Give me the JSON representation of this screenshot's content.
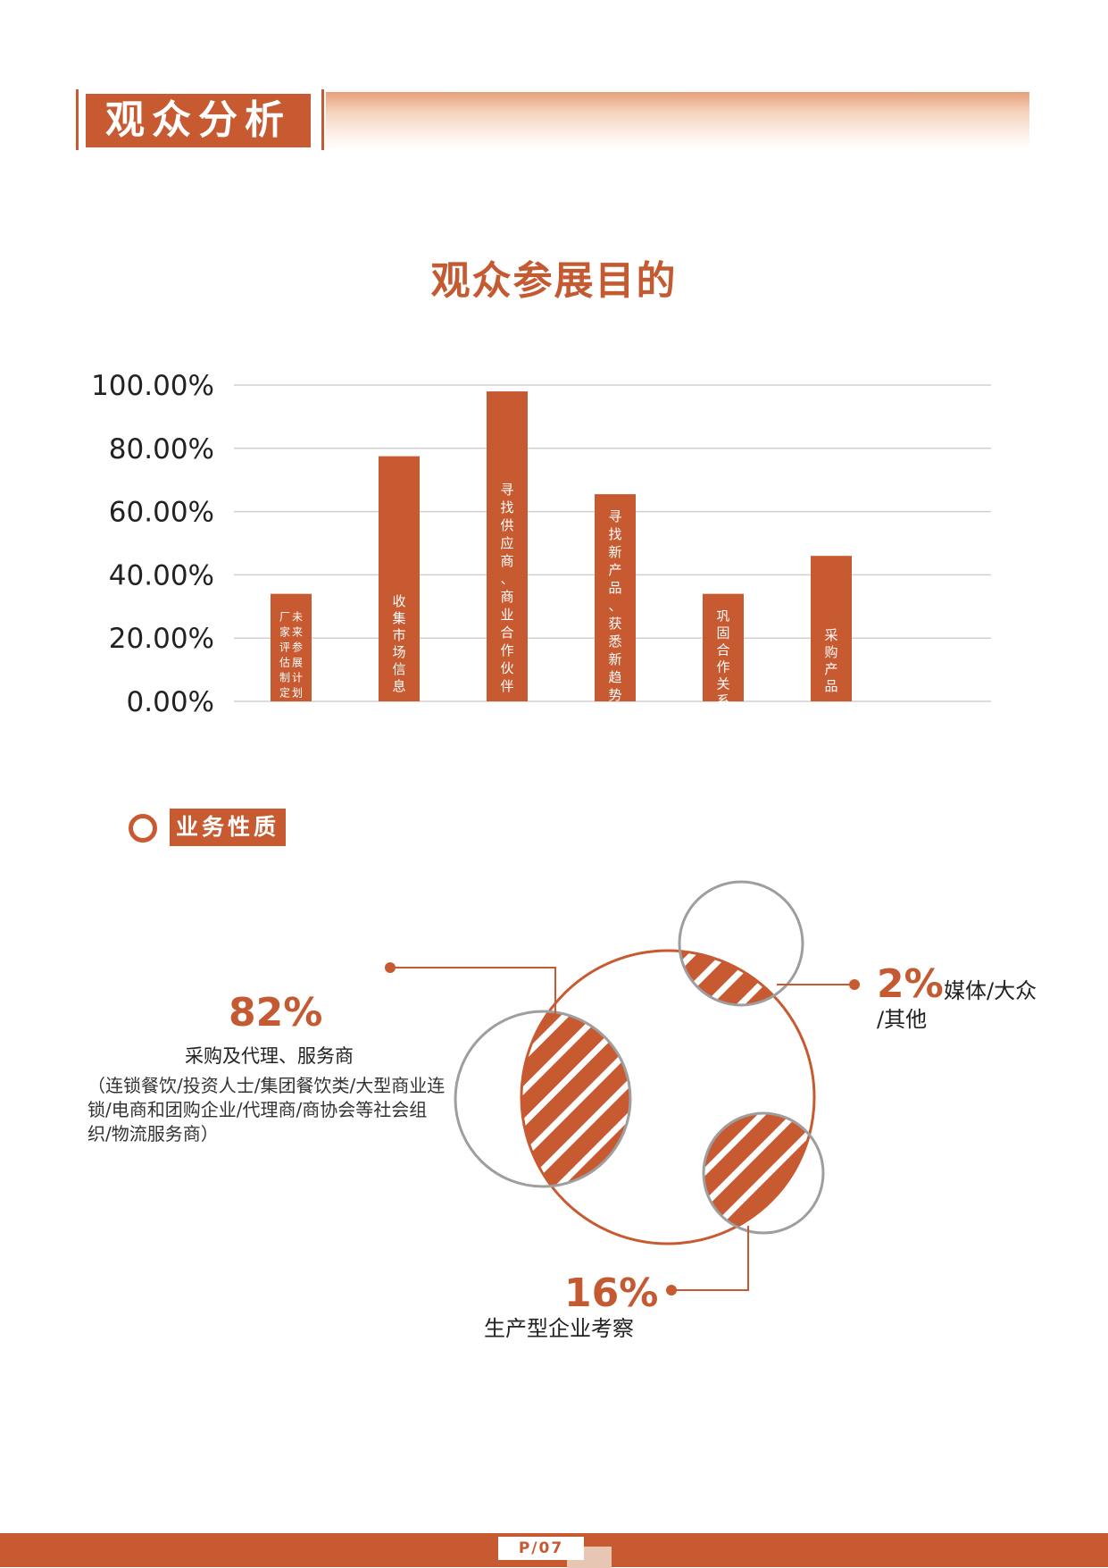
{
  "header": {
    "section_title": "观众分析"
  },
  "chart_data": {
    "type": "bar",
    "title": "观众参展目的",
    "categories": [
      "未来参展计划厂家评估制定",
      "收集市场信息",
      "寻找供应商、商业合作伙伴",
      "寻找新产品、获悉新趋势",
      "巩固合作关系",
      "采购产品"
    ],
    "bar_label_columns": [
      [
        "未来参展计划",
        "厂家评估制定"
      ],
      [
        "收集市场信息"
      ],
      [
        "寻找供应商、商业合作伙伴"
      ],
      [
        "寻找新产品、获悉新趋势"
      ],
      [
        "巩固合作关系"
      ],
      [
        "采购产品"
      ]
    ],
    "values": [
      34,
      77.5,
      98,
      65.5,
      34,
      46
    ],
    "ylim": [
      0,
      100
    ],
    "yticks": [
      0,
      20,
      40,
      60,
      80,
      100
    ],
    "ytick_labels": [
      "0.00%",
      "20.00%",
      "40.00%",
      "60.00%",
      "80.00%",
      "100.00%"
    ],
    "grid": true,
    "bar_color": "#c85a32",
    "grid_color": "#d0d0d0"
  },
  "business": {
    "section_title": "业务性质",
    "items": [
      {
        "percent": "82%",
        "label": "采购及代理、服务商",
        "detail_lines": [
          "（连锁餐饮/投资人士/集团餐饮类/大型商业连",
          "锁/电商和团购企业/代理商/商协会等社会组",
          "织/物流服务商）"
        ]
      },
      {
        "percent": "2%",
        "label_lines": [
          "媒体/大众",
          "/其他"
        ]
      },
      {
        "percent": "16%",
        "label": "生产型企业考察"
      }
    ]
  },
  "footer": {
    "page": "P/07"
  },
  "colors": {
    "accent": "#c85a32",
    "circle_gray": "#9e9e9e",
    "stripe": "#ffffff"
  }
}
